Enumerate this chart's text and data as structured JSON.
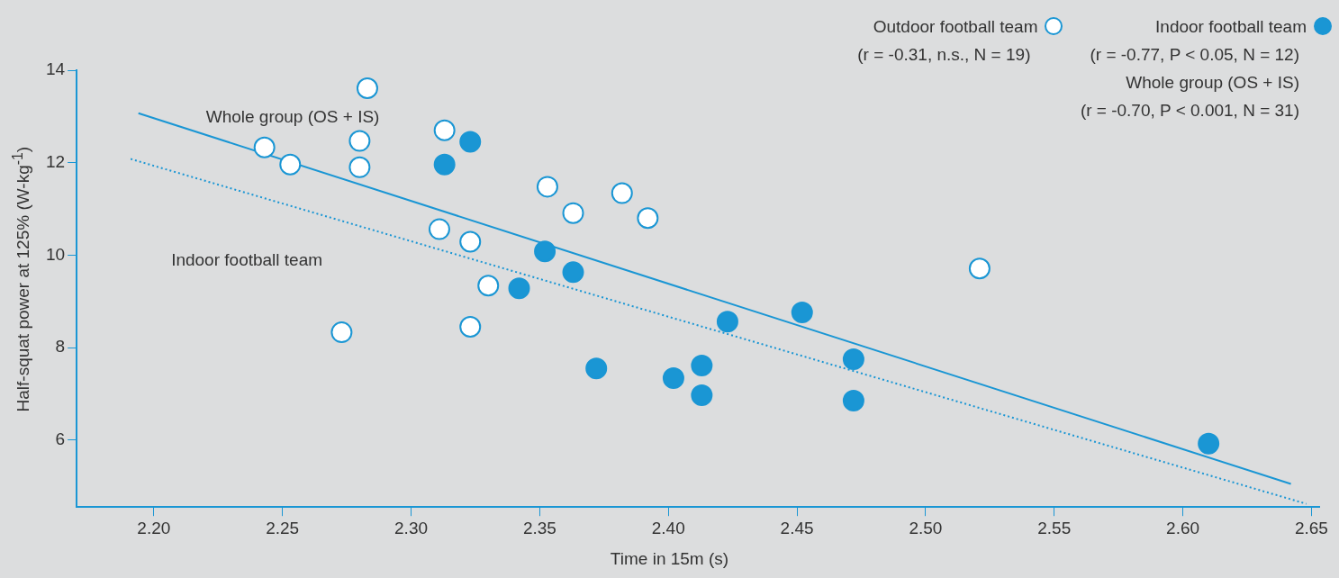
{
  "chart_data": {
    "type": "scatter",
    "xlabel": "Time in 15m (s)",
    "ylabel": "Half-squat power at 125% (W-kg$^{-1}$)",
    "xlim": [
      2.17,
      2.653
    ],
    "ylim": [
      4.55,
      14
    ],
    "xticks": [
      {
        "value": 2.2,
        "label": "2.20"
      },
      {
        "value": 2.25,
        "label": "2.25"
      },
      {
        "value": 2.3,
        "label": "2.30"
      },
      {
        "value": 2.35,
        "label": "2.35"
      },
      {
        "value": 2.4,
        "label": "2.40"
      },
      {
        "value": 2.45,
        "label": "2.45"
      },
      {
        "value": 2.5,
        "label": "2.50"
      },
      {
        "value": 2.55,
        "label": "2.55"
      },
      {
        "value": 2.6,
        "label": "2.60"
      },
      {
        "value": 2.65,
        "label": "2.65"
      }
    ],
    "yticks": [
      6,
      8,
      10,
      12,
      14
    ],
    "grid": false,
    "legend": "top right",
    "annotations": [
      "(r = -0.31, n.s., N = 19)",
      "(r = -0.77, P < 0.05, N = 12)",
      "(r = -0.70, P < 0.001, N = 31)"
    ],
    "series": [
      {
        "name": "Outdoor football team",
        "color": "#ffffff",
        "marker": "circle",
        "x": [
          2.243,
          2.253,
          2.273,
          2.283,
          2.28,
          2.28,
          2.313,
          2.311,
          2.323,
          2.33,
          2.323,
          2.353,
          2.363,
          2.382,
          2.392,
          2.521
        ],
        "values": [
          12.33,
          11.96,
          8.33,
          13.61,
          12.47,
          11.9,
          12.7,
          10.56,
          10.29,
          9.34,
          8.45,
          11.48,
          10.91,
          11.34,
          10.8,
          9.71
        ]
      },
      {
        "name": "Indoor football team",
        "color": "#1a96d4",
        "marker": "circle",
        "x": [
          2.323,
          2.313,
          2.352,
          2.363,
          2.342,
          2.372,
          2.402,
          2.413,
          2.413,
          2.423,
          2.452,
          2.472,
          2.472,
          2.61
        ],
        "values": [
          12.45,
          11.96,
          10.08,
          9.63,
          9.28,
          7.55,
          7.34,
          7.61,
          6.97,
          8.56,
          8.76,
          7.75,
          6.85,
          5.92
        ]
      },
      {
        "name": "Whole group (OS + IS)",
        "type": "line",
        "marker": "none",
        "line_style": "solid",
        "color": "#1a96d4",
        "x": [
          2.194,
          2.642
        ],
        "values": [
          13.07,
          5.05
        ]
      },
      {
        "name": "Indoor football team",
        "type": "line",
        "marker": "none",
        "line_style": "dotted",
        "color": "#1a96d4",
        "x": [
          2.191,
          2.648
        ],
        "values": [
          12.08,
          4.62
        ]
      }
    ]
  }
}
